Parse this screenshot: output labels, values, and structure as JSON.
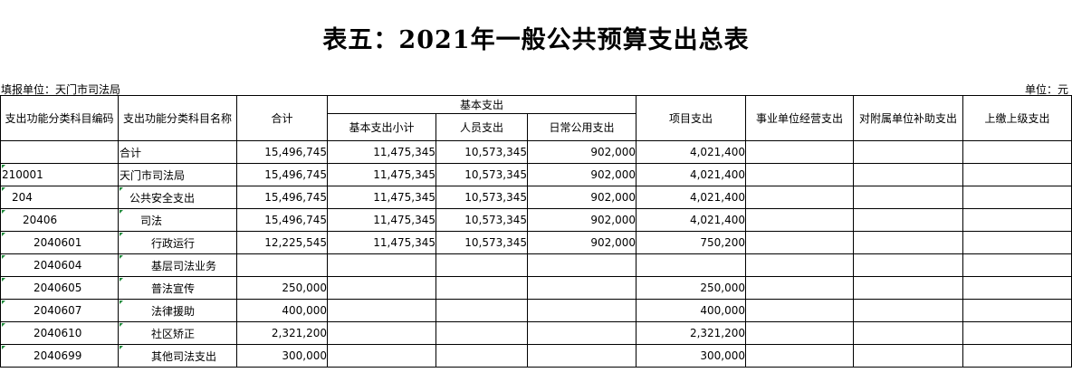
{
  "title": "表五：2021年一般公共预算支出总表",
  "unit_left": "填报单位：天门市司法局",
  "unit_right": "单位：元",
  "headers": {
    "code": "支出功能分类科目编码",
    "name": "支出功能分类科目名称",
    "total": "合计",
    "basic_group": "基本支出",
    "basic_subtotal": "基本支出小计",
    "personnel": "人员支出",
    "daily": "日常公用支出",
    "project": "项目支出",
    "business": "事业单位经营支出",
    "subsidy": "对附属单位补助支出",
    "upper": "上缴上级支出"
  },
  "rows": [
    {
      "code": "",
      "name": "合计",
      "level": 0,
      "total": "15,496,745",
      "basic": "11,475,345",
      "personnel": "10,573,345",
      "daily": "902,000",
      "project": "4,021,400",
      "business": "",
      "subsidy": "",
      "upper": ""
    },
    {
      "code": "210001",
      "name": "天门市司法局",
      "level": 0,
      "total": "15,496,745",
      "basic": "11,475,345",
      "personnel": "10,573,345",
      "daily": "902,000",
      "project": "4,021,400",
      "business": "",
      "subsidy": "",
      "upper": ""
    },
    {
      "code": "204",
      "name": "公共安全支出",
      "level": 1,
      "total": "15,496,745",
      "basic": "11,475,345",
      "personnel": "10,573,345",
      "daily": "902,000",
      "project": "4,021,400",
      "business": "",
      "subsidy": "",
      "upper": ""
    },
    {
      "code": "20406",
      "name": "司法",
      "level": 2,
      "total": "15,496,745",
      "basic": "11,475,345",
      "personnel": "10,573,345",
      "daily": "902,000",
      "project": "4,021,400",
      "business": "",
      "subsidy": "",
      "upper": ""
    },
    {
      "code": "2040601",
      "name": "行政运行",
      "level": 3,
      "total": "12,225,545",
      "basic": "11,475,345",
      "personnel": "10,573,345",
      "daily": "902,000",
      "project": "750,200",
      "business": "",
      "subsidy": "",
      "upper": ""
    },
    {
      "code": "2040604",
      "name": "基层司法业务",
      "level": 3,
      "total": "",
      "basic": "",
      "personnel": "",
      "daily": "",
      "project": "",
      "business": "",
      "subsidy": "",
      "upper": ""
    },
    {
      "code": "2040605",
      "name": "普法宣传",
      "level": 3,
      "total": "250,000",
      "basic": "",
      "personnel": "",
      "daily": "",
      "project": "250,000",
      "business": "",
      "subsidy": "",
      "upper": ""
    },
    {
      "code": "2040607",
      "name": "法律援助",
      "level": 3,
      "total": "400,000",
      "basic": "",
      "personnel": "",
      "daily": "",
      "project": "400,000",
      "business": "",
      "subsidy": "",
      "upper": ""
    },
    {
      "code": "2040610",
      "name": "社区矫正",
      "level": 3,
      "total": "2,321,200",
      "basic": "",
      "personnel": "",
      "daily": "",
      "project": "2,321,200",
      "business": "",
      "subsidy": "",
      "upper": ""
    },
    {
      "code": "2040699",
      "name": "其他司法支出",
      "level": 3,
      "total": "300,000",
      "basic": "",
      "personnel": "",
      "daily": "",
      "project": "300,000",
      "business": "",
      "subsidy": "",
      "upper": ""
    }
  ]
}
